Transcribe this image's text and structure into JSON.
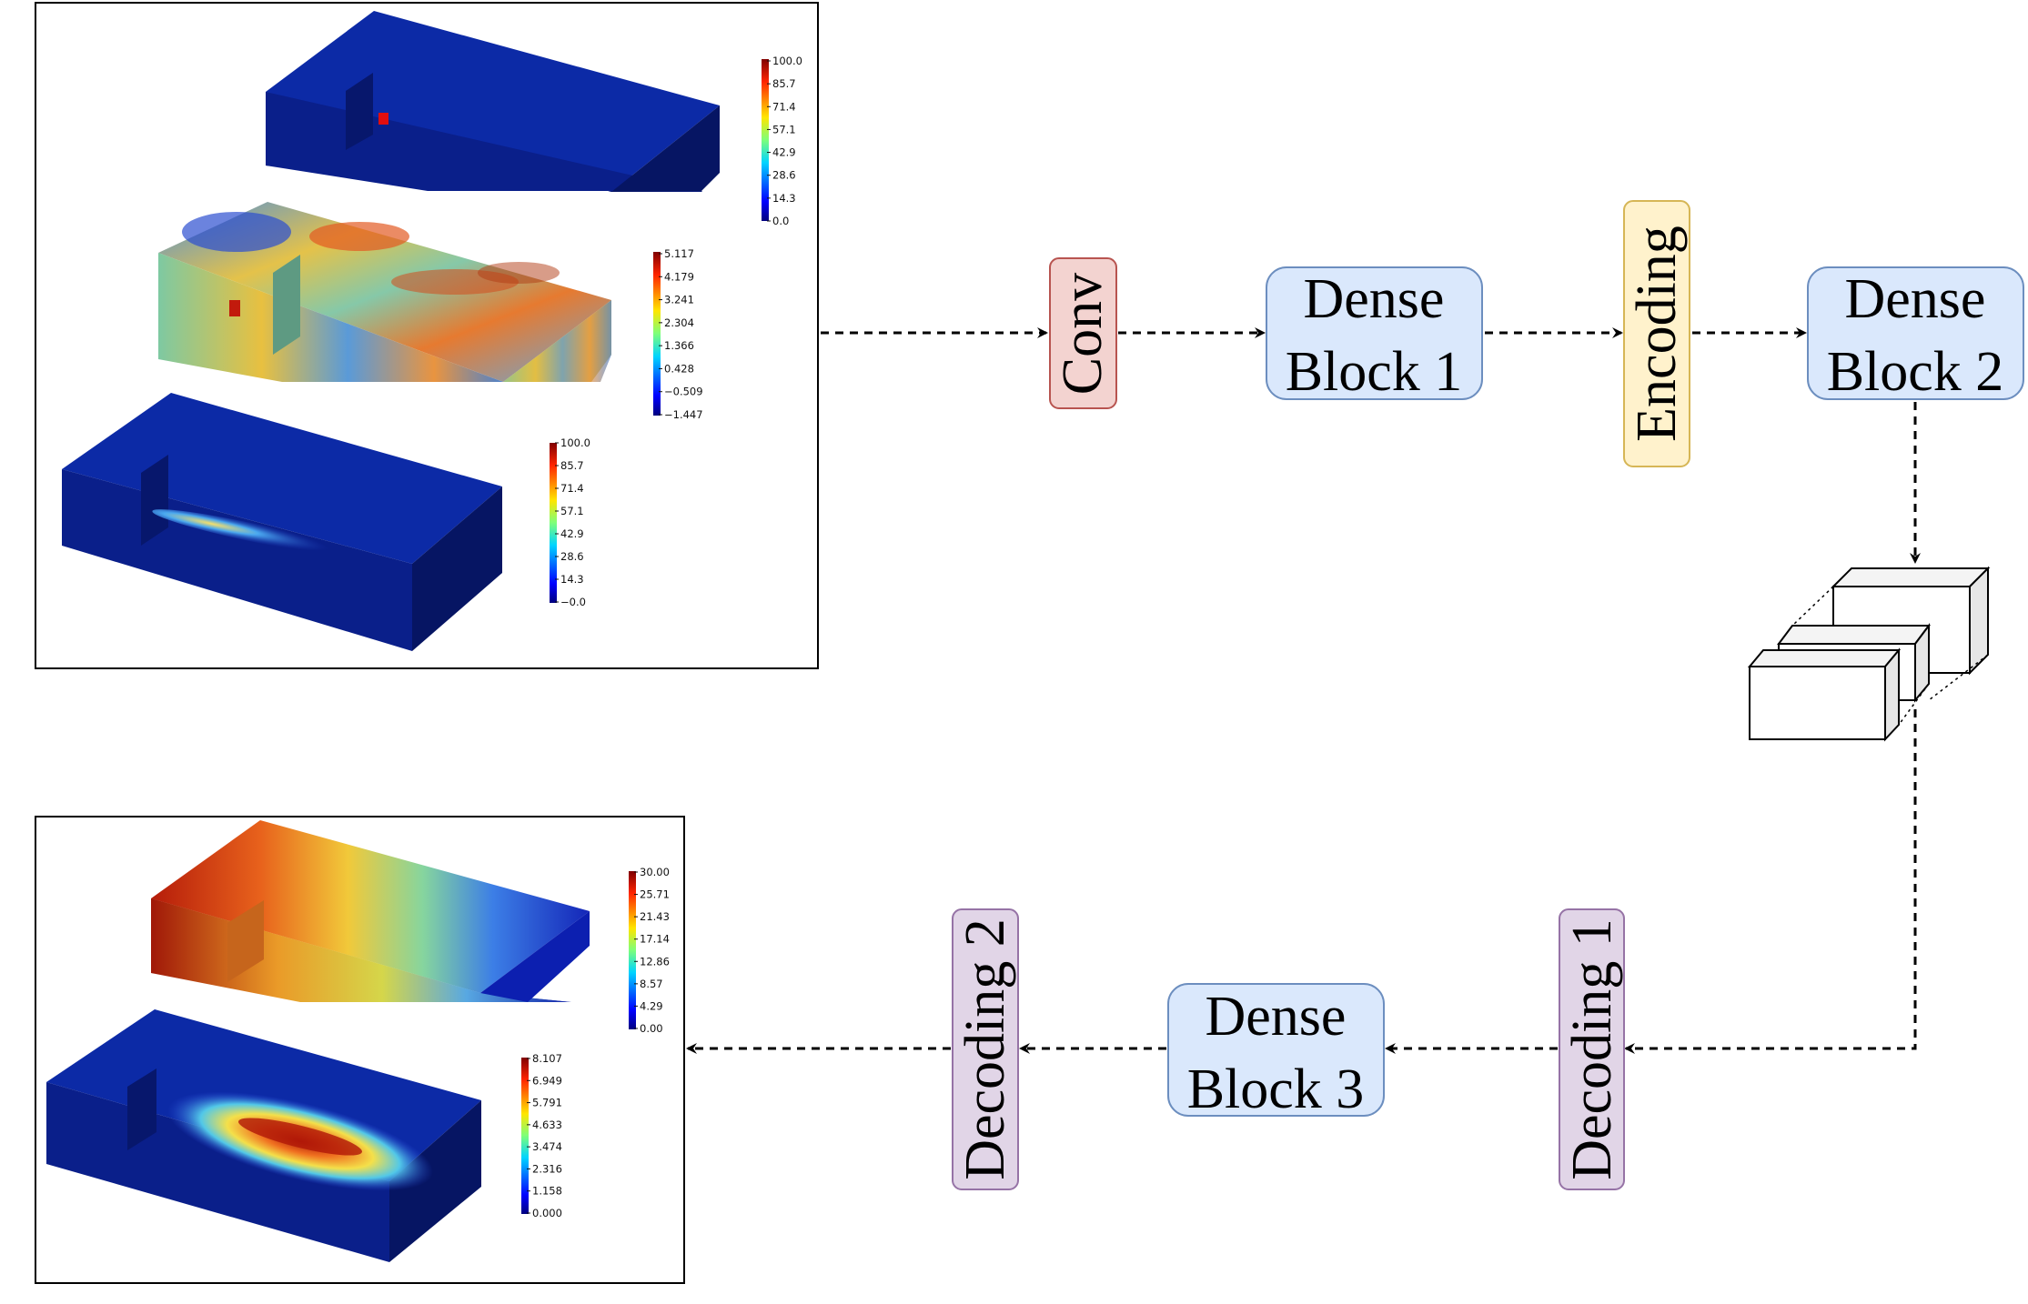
{
  "nodes": {
    "conv": {
      "label": "Conv",
      "fill": "#f3d3d0",
      "stroke": "#b85450"
    },
    "dense1": {
      "line1": "Dense",
      "line2": "Block 1",
      "fill": "#dae8fc",
      "stroke": "#6c8ebf"
    },
    "encoding": {
      "label": "Encoding",
      "fill": "#fff2cc",
      "stroke": "#d6b656"
    },
    "dense2": {
      "line1": "Dense",
      "line2": "Block 2",
      "fill": "#dae8fc",
      "stroke": "#6c8ebf"
    },
    "decoding1": {
      "label": "Decoding 1",
      "fill": "#e1d5e7",
      "stroke": "#9673a6"
    },
    "dense3": {
      "line1": "Dense",
      "line2": "Block 3",
      "fill": "#dae8fc",
      "stroke": "#6c8ebf"
    },
    "decoding2": {
      "label": "Decoding 2",
      "fill": "#e1d5e7",
      "stroke": "#9673a6"
    }
  },
  "input_panel": {
    "colorbars": [
      {
        "ticks": [
          "100.0",
          "85.7",
          "71.4",
          "57.1",
          "42.9",
          "28.6",
          "14.3",
          "0.0"
        ]
      },
      {
        "ticks": [
          "5.117",
          "4.179",
          "3.241",
          "2.304",
          "1.366",
          "0.428",
          "−0.509",
          "−1.447"
        ]
      },
      {
        "ticks": [
          "100.0",
          "85.7",
          "71.4",
          "57.1",
          "42.9",
          "28.6",
          "14.3",
          "−0.0"
        ]
      }
    ]
  },
  "output_panel": {
    "colorbars": [
      {
        "ticks": [
          "30.00",
          "25.71",
          "21.43",
          "17.14",
          "12.86",
          "8.57",
          "4.29",
          "0.00"
        ]
      },
      {
        "ticks": [
          "8.107",
          "6.949",
          "5.791",
          "4.633",
          "3.474",
          "2.316",
          "1.158",
          "0.000"
        ]
      }
    ]
  },
  "colors": {
    "arrow": "#000000",
    "volume_base": "#0a1f8a",
    "panel_border": "#000000"
  }
}
